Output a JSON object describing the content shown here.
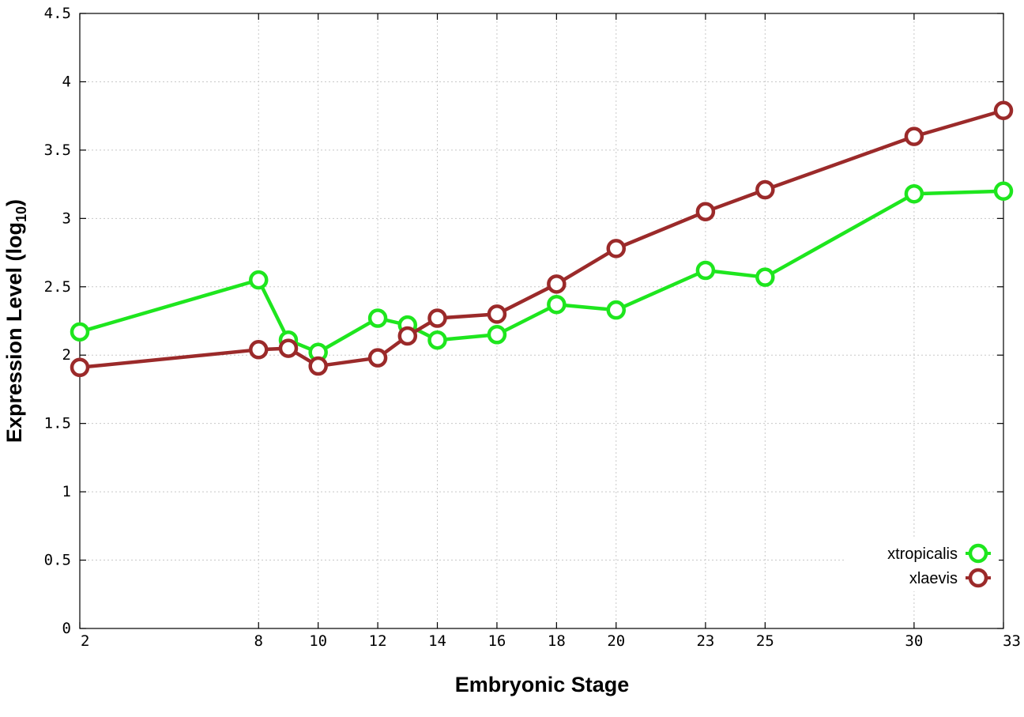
{
  "chart_data": {
    "type": "line",
    "xlabel": "Embryonic Stage",
    "ylabel": "Expression Level (log",
    "ylabel_sub": "10",
    "ylabel_suffix": ")",
    "xlim": [
      2,
      33
    ],
    "ylim": [
      0,
      4.5
    ],
    "x_ticks": [
      2,
      8,
      10,
      12,
      14,
      16,
      18,
      20,
      23,
      25,
      30,
      33
    ],
    "x_tick_labels": [
      "2",
      "8",
      "10",
      "12",
      "14",
      "16",
      "18",
      "20",
      "23",
      "25",
      "30",
      "33"
    ],
    "y_ticks": [
      0,
      0.5,
      1,
      1.5,
      2,
      2.5,
      3,
      3.5,
      4,
      4.5
    ],
    "y_tick_labels": [
      "0",
      "0.5",
      "1",
      "1.5",
      "2",
      "2.5",
      "3",
      "3.5",
      "4",
      "4.5"
    ],
    "grid": true,
    "legend_position": "bottom-right",
    "series": [
      {
        "name": "xtropicalis",
        "color": "#1ee61e",
        "x": [
          2,
          8,
          9,
          10,
          12,
          13,
          14,
          16,
          18,
          20,
          23,
          25,
          30,
          33
        ],
        "y": [
          2.17,
          2.55,
          2.11,
          2.02,
          2.27,
          2.22,
          2.11,
          2.15,
          2.37,
          2.33,
          2.62,
          2.57,
          3.18,
          3.2
        ]
      },
      {
        "name": "xlaevis",
        "color": "#9b2a2a",
        "x": [
          2,
          8,
          9,
          10,
          12,
          13,
          14,
          16,
          18,
          20,
          23,
          25,
          30,
          33
        ],
        "y": [
          1.91,
          2.04,
          2.05,
          1.92,
          1.98,
          2.14,
          2.27,
          2.3,
          2.52,
          2.78,
          3.05,
          3.21,
          3.6,
          3.79
        ]
      }
    ]
  }
}
